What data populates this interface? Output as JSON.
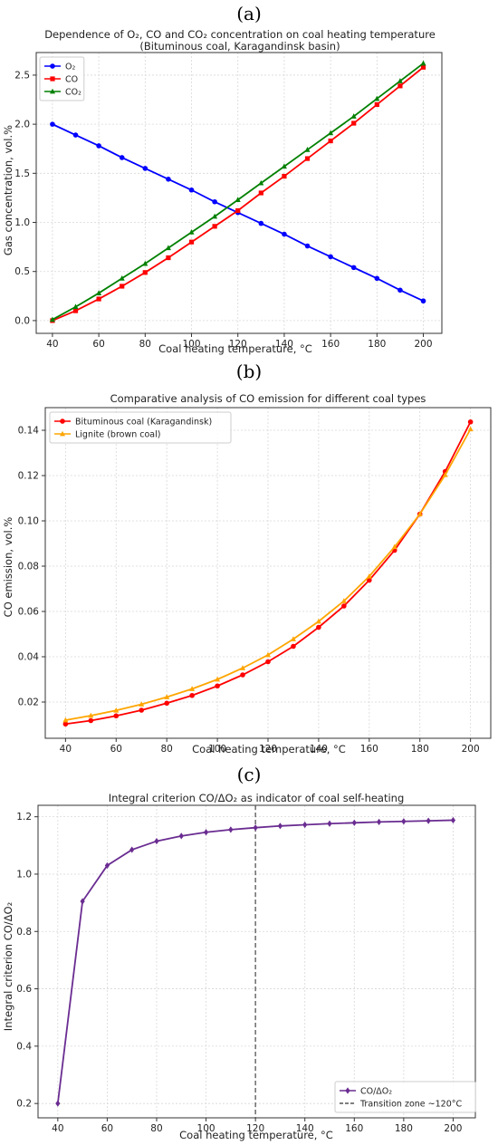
{
  "panels": [
    {
      "letter": "(a)",
      "chart_data": {
        "type": "line",
        "title": "Dependence of O₂, CO and CO₂ concentration on coal heating temperature",
        "subtitle": "(Bituminous coal, Karagandinsk basin)",
        "xlabel": "Coal heating temperature, °C",
        "ylabel": "Gas concentration, vol.%",
        "x": [
          40,
          50,
          60,
          70,
          80,
          90,
          100,
          110,
          120,
          130,
          140,
          150,
          160,
          170,
          180,
          190,
          200
        ],
        "xlim": [
          33,
          208
        ],
        "ylim": [
          -0.13,
          2.73
        ],
        "xticks": [
          40,
          60,
          80,
          100,
          120,
          140,
          160,
          180,
          200
        ],
        "yticks": [
          0.0,
          0.5,
          1.0,
          1.5,
          2.0,
          2.5
        ],
        "ytick_decimals": 1,
        "grid": true,
        "legend_position": "top-left",
        "series": [
          {
            "name": "O₂",
            "color": "#0000ff",
            "marker": "circle",
            "values": [
              2.0,
              1.89,
              1.78,
              1.66,
              1.55,
              1.44,
              1.33,
              1.21,
              1.1,
              0.99,
              0.88,
              0.76,
              0.65,
              0.54,
              0.43,
              0.31,
              0.2
            ]
          },
          {
            "name": "CO",
            "color": "#ff0000",
            "marker": "square",
            "values": [
              0.0,
              0.1,
              0.22,
              0.35,
              0.49,
              0.64,
              0.8,
              0.96,
              1.12,
              1.3,
              1.47,
              1.65,
              1.83,
              2.01,
              2.2,
              2.39,
              2.58
            ]
          },
          {
            "name": "CO₂",
            "color": "#008000",
            "marker": "triangle",
            "values": [
              0.01,
              0.14,
              0.28,
              0.43,
              0.58,
              0.74,
              0.9,
              1.06,
              1.23,
              1.4,
              1.57,
              1.74,
              1.91,
              2.08,
              2.26,
              2.44,
              2.62
            ]
          }
        ]
      }
    },
    {
      "letter": "(b)",
      "chart_data": {
        "type": "line",
        "title": "Comparative analysis of CO emission for different coal types",
        "subtitle": "",
        "xlabel": "Coal heating temperature, °C",
        "ylabel": "CO emission, vol.%",
        "x": [
          40,
          50,
          60,
          70,
          80,
          90,
          100,
          110,
          120,
          130,
          140,
          150,
          160,
          170,
          180,
          190,
          200
        ],
        "xlim": [
          32,
          208
        ],
        "ylim": [
          0.004,
          0.15
        ],
        "xticks": [
          40,
          60,
          80,
          100,
          120,
          140,
          160,
          180,
          200
        ],
        "yticks": [
          0.02,
          0.04,
          0.06,
          0.08,
          0.1,
          0.12,
          0.14
        ],
        "ytick_decimals": 2,
        "grid": true,
        "legend_position": "top-left",
        "series": [
          {
            "name": "Bituminous coal (Karagandinsk)",
            "color": "#ff0000",
            "marker": "circle",
            "values": [
              0.0103,
              0.0118,
              0.0139,
              0.0164,
              0.0195,
              0.0229,
              0.0271,
              0.032,
              0.0378,
              0.0446,
              0.053,
              0.0624,
              0.0738,
              0.087,
              0.103,
              0.1218,
              0.1437
            ]
          },
          {
            "name": "Lignite (brown coal)",
            "color": "#ffa500",
            "marker": "triangle",
            "values": [
              0.012,
              0.014,
              0.0163,
              0.019,
              0.0222,
              0.0258,
              0.03,
              0.035,
              0.0408,
              0.0478,
              0.0556,
              0.0646,
              0.0755,
              0.0885,
              0.103,
              0.1203,
              0.1405
            ]
          }
        ]
      }
    },
    {
      "letter": "(c)",
      "chart_data": {
        "type": "line",
        "title": "Integral criterion CO/ΔO₂ as indicator of coal self-heating",
        "subtitle": "",
        "xlabel": "Coal heating temperature, °C",
        "ylabel": "Integral criterion CO/ΔO₂",
        "x": [
          40,
          50,
          60,
          70,
          80,
          90,
          100,
          110,
          120,
          130,
          140,
          150,
          160,
          170,
          180,
          190,
          200
        ],
        "xlim": [
          32,
          209
        ],
        "ylim": [
          0.15,
          1.24
        ],
        "xticks": [
          40,
          60,
          80,
          100,
          120,
          140,
          160,
          180,
          200
        ],
        "yticks": [
          0.2,
          0.4,
          0.6,
          0.8,
          1.0,
          1.2
        ],
        "ytick_decimals": 1,
        "grid": true,
        "legend_position": "bottom-right",
        "series": [
          {
            "name": "CO/ΔO₂",
            "color": "#6a2c91",
            "marker": "diamond",
            "values": [
              0.2,
              0.905,
              1.03,
              1.085,
              1.115,
              1.133,
              1.146,
              1.155,
              1.162,
              1.168,
              1.172,
              1.176,
              1.179,
              1.182,
              1.184,
              1.186,
              1.188
            ]
          }
        ],
        "reference_lines": [
          {
            "name": "Transition zone ~120°C",
            "x": 120,
            "color": "#555555",
            "style": "dashed"
          }
        ]
      }
    }
  ]
}
